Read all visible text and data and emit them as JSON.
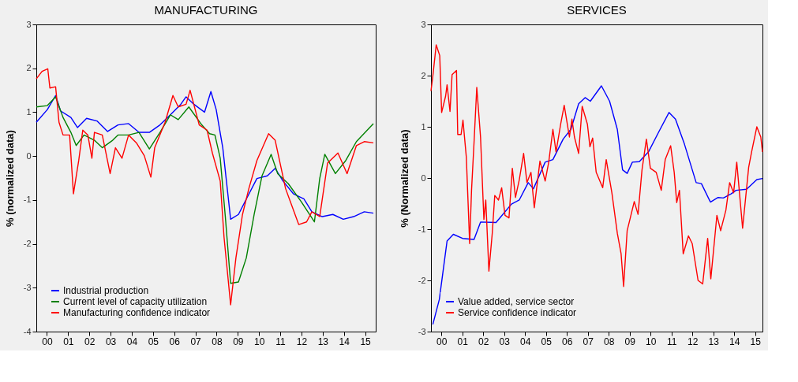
{
  "chart_data": [
    {
      "type": "line",
      "title": "MANUFACTURING",
      "ylabel": "% (normalized data)",
      "xlim": [
        -0.5,
        15.5
      ],
      "ylim": [
        -4,
        3
      ],
      "yticks": [
        -4,
        -3,
        -2,
        -1,
        0,
        1,
        2,
        3
      ],
      "xticks": [
        {
          "value": 0,
          "label": "00"
        },
        {
          "value": 1,
          "label": "01"
        },
        {
          "value": 2,
          "label": "02"
        },
        {
          "value": 3,
          "label": "03"
        },
        {
          "value": 4,
          "label": "04"
        },
        {
          "value": 5,
          "label": "05"
        },
        {
          "value": 6,
          "label": "06"
        },
        {
          "value": 7,
          "label": "07"
        },
        {
          "value": 8,
          "label": "08"
        },
        {
          "value": 9,
          "label": "09"
        },
        {
          "value": 10,
          "label": "10"
        },
        {
          "value": 11,
          "label": "11"
        },
        {
          "value": 12,
          "label": "12"
        },
        {
          "value": 13,
          "label": "13"
        },
        {
          "value": 14,
          "label": "14"
        },
        {
          "value": 15,
          "label": "15"
        }
      ],
      "grid": false,
      "legend": "bottom left",
      "marker": "none",
      "line_style": "solid",
      "series": [
        {
          "name": "Industrial production",
          "color": "#0000ff",
          "x": [
            -0.5,
            0.02,
            0.41,
            0.64,
            1.13,
            1.44,
            1.87,
            2.36,
            2.86,
            3.35,
            3.85,
            4.34,
            4.83,
            5.33,
            5.82,
            6.31,
            6.56,
            6.93,
            7.43,
            7.73,
            7.98,
            8.29,
            8.66,
            9.03,
            9.4,
            9.9,
            10.39,
            10.76,
            11.13,
            11.62,
            12.12,
            12.49,
            12.98,
            13.48,
            13.97,
            14.46,
            14.96,
            15.39
          ],
          "values": [
            0.77,
            1.06,
            1.38,
            1.03,
            0.88,
            0.65,
            0.86,
            0.8,
            0.56,
            0.71,
            0.74,
            0.54,
            0.54,
            0.71,
            0.94,
            1.18,
            1.35,
            1.18,
            1.0,
            1.47,
            1.06,
            0.19,
            -1.44,
            -1.33,
            -0.98,
            -0.51,
            -0.45,
            -0.28,
            -0.57,
            -0.86,
            -0.98,
            -1.27,
            -1.38,
            -1.33,
            -1.44,
            -1.38,
            -1.27,
            -1.3
          ]
        },
        {
          "name": "Current level of capacity utilization",
          "color": "#008000",
          "x": [
            -0.5,
            0.02,
            0.41,
            0.76,
            1.13,
            1.38,
            1.75,
            2.24,
            2.61,
            3.1,
            3.35,
            3.85,
            4.34,
            4.83,
            5.33,
            5.82,
            6.19,
            6.69,
            7.3,
            7.67,
            7.92,
            8.17,
            8.41,
            8.66,
            9.03,
            9.4,
            9.77,
            10.14,
            10.57,
            10.88,
            11.38,
            11.99,
            12.61,
            12.86,
            13.1,
            13.6,
            14.09,
            14.59,
            15.39
          ],
          "values": [
            1.12,
            1.15,
            1.35,
            0.88,
            0.54,
            0.24,
            0.48,
            0.36,
            0.19,
            0.36,
            0.48,
            0.48,
            0.54,
            0.16,
            0.54,
            0.94,
            0.83,
            1.12,
            0.71,
            0.51,
            0.48,
            -0.05,
            -1.38,
            -2.9,
            -2.87,
            -2.32,
            -1.33,
            -0.45,
            0.04,
            -0.4,
            -0.63,
            -1.04,
            -1.5,
            -0.51,
            0.04,
            -0.4,
            -0.1,
            0.33,
            0.74
          ]
        },
        {
          "name": "Manufacturing confidence indicator",
          "color": "#ff0000",
          "x": [
            -0.5,
            -0.23,
            0.04,
            0.14,
            0.41,
            0.57,
            0.76,
            1.07,
            1.25,
            1.5,
            1.69,
            1.93,
            2.12,
            2.24,
            2.61,
            2.98,
            3.23,
            3.54,
            3.85,
            4.22,
            4.59,
            4.9,
            5.08,
            5.57,
            5.94,
            6.19,
            6.56,
            6.75,
            7.18,
            7.55,
            7.8,
            8.17,
            8.35,
            8.66,
            8.91,
            9.22,
            9.52,
            9.9,
            10.45,
            10.76,
            11.25,
            11.87,
            12.24,
            12.49,
            12.86,
            13.23,
            13.72,
            14.15,
            14.59,
            14.96,
            15.39
          ],
          "values": [
            1.76,
            1.93,
            1.99,
            1.55,
            1.58,
            0.77,
            0.48,
            0.48,
            -0.86,
            -0.1,
            0.59,
            0.48,
            -0.05,
            0.54,
            0.48,
            -0.4,
            0.19,
            -0.05,
            0.48,
            0.3,
            0.01,
            -0.48,
            0.19,
            0.77,
            1.38,
            1.12,
            1.18,
            1.5,
            0.71,
            0.59,
            0.07,
            -0.57,
            -1.85,
            -3.39,
            -2.32,
            -1.33,
            -0.74,
            -0.1,
            0.51,
            0.36,
            -0.74,
            -1.56,
            -1.5,
            -1.27,
            -1.38,
            -0.16,
            0.07,
            -0.4,
            0.24,
            0.33,
            0.3
          ]
        }
      ]
    },
    {
      "type": "line",
      "title": "SERVICES",
      "ylabel": "% (Normalized data)",
      "xlim": [
        -0.5,
        15.35
      ],
      "ylim": [
        -3,
        3
      ],
      "yticks": [
        -3,
        -2,
        -1,
        0,
        1,
        2,
        3
      ],
      "xticks": [
        {
          "value": 0,
          "label": "00"
        },
        {
          "value": 1,
          "label": "01"
        },
        {
          "value": 2,
          "label": "02"
        },
        {
          "value": 3,
          "label": "03"
        },
        {
          "value": 4,
          "label": "04"
        },
        {
          "value": 5,
          "label": "05"
        },
        {
          "value": 6,
          "label": "06"
        },
        {
          "value": 7,
          "label": "07"
        },
        {
          "value": 8,
          "label": "08"
        },
        {
          "value": 9,
          "label": "09"
        },
        {
          "value": 10,
          "label": "10"
        },
        {
          "value": 11,
          "label": "11"
        },
        {
          "value": 12,
          "label": "12"
        },
        {
          "value": 13,
          "label": "13"
        },
        {
          "value": 14,
          "label": "14"
        },
        {
          "value": 15,
          "label": "15"
        }
      ],
      "grid": false,
      "legend": "bottom left",
      "marker": "none",
      "line_style": "solid",
      "series": [
        {
          "name": "Value added, service sector",
          "color": "#0000ff",
          "x": [
            -0.41,
            -0.1,
            0.27,
            0.57,
            1.01,
            1.56,
            1.87,
            2.61,
            3.35,
            3.72,
            4.15,
            4.4,
            4.96,
            5.33,
            5.82,
            6.19,
            6.56,
            6.87,
            7.12,
            7.65,
            8.04,
            8.41,
            8.66,
            8.88,
            9.13,
            9.46,
            9.9,
            10.39,
            10.88,
            11.19,
            11.62,
            12.18,
            12.43,
            12.86,
            13.23,
            13.48,
            13.85,
            14.09,
            14.59,
            15.08,
            15.35
          ],
          "values": [
            -2.86,
            -2.37,
            -1.23,
            -1.1,
            -1.18,
            -1.2,
            -0.86,
            -0.87,
            -0.51,
            -0.43,
            -0.09,
            -0.21,
            0.31,
            0.36,
            0.76,
            0.95,
            1.45,
            1.57,
            1.5,
            1.8,
            1.5,
            0.95,
            0.16,
            0.09,
            0.31,
            0.32,
            0.51,
            0.9,
            1.28,
            1.15,
            0.66,
            -0.09,
            -0.11,
            -0.47,
            -0.38,
            -0.39,
            -0.31,
            -0.24,
            -0.22,
            -0.03,
            -0.01
          ]
        },
        {
          "name": "Service confidence indicator",
          "color": "#ff0000",
          "x": [
            -0.5,
            -0.41,
            -0.25,
            -0.08,
            0.01,
            0.2,
            0.27,
            0.41,
            0.51,
            0.72,
            0.78,
            0.94,
            1.03,
            1.19,
            1.35,
            1.44,
            1.56,
            1.69,
            1.87,
            2.03,
            2.12,
            2.27,
            2.43,
            2.55,
            2.73,
            2.88,
            3.04,
            3.23,
            3.39,
            3.54,
            3.72,
            3.93,
            4.09,
            4.28,
            4.44,
            4.71,
            4.96,
            5.13,
            5.33,
            5.48,
            5.7,
            5.87,
            6.12,
            6.24,
            6.36,
            6.56,
            6.73,
            6.98,
            7.1,
            7.23,
            7.4,
            7.71,
            7.88,
            8.15,
            8.41,
            8.59,
            8.71,
            8.88,
            9.03,
            9.22,
            9.4,
            9.59,
            9.8,
            9.99,
            10.27,
            10.51,
            10.7,
            10.96,
            11.13,
            11.25,
            11.38,
            11.56,
            11.81,
            11.99,
            12.27,
            12.49,
            12.73,
            12.88,
            13.17,
            13.35,
            13.6,
            13.78,
            13.97,
            14.12,
            14.4,
            14.69,
            14.83,
            15.08,
            15.27,
            15.35
          ],
          "values": [
            1.7,
            1.99,
            2.6,
            2.39,
            1.28,
            1.6,
            1.82,
            1.3,
            2.02,
            2.1,
            0.85,
            0.85,
            1.13,
            0.41,
            -1.28,
            -0.24,
            0.7,
            1.77,
            0.8,
            -0.81,
            -0.43,
            -1.82,
            -1.08,
            -0.34,
            -0.43,
            -0.19,
            -0.73,
            -0.78,
            0.19,
            -0.38,
            -0.04,
            0.48,
            -0.09,
            0.11,
            -0.58,
            0.33,
            -0.06,
            0.31,
            0.95,
            0.51,
            1.05,
            1.42,
            0.8,
            1.15,
            0.8,
            0.48,
            1.4,
            1.05,
            0.61,
            0.78,
            0.11,
            -0.19,
            0.36,
            -0.29,
            -1.08,
            -1.48,
            -2.12,
            -1.03,
            -0.78,
            -0.46,
            -0.71,
            0.16,
            0.76,
            0.19,
            0.11,
            -0.24,
            0.36,
            0.63,
            0.11,
            -0.48,
            -0.24,
            -1.48,
            -1.13,
            -1.28,
            -2.0,
            -2.07,
            -1.18,
            -1.97,
            -0.73,
            -1.03,
            -0.63,
            -0.09,
            -0.29,
            0.31,
            -0.98,
            0.21,
            0.51,
            1.0,
            0.8,
            0.51
          ]
        }
      ]
    }
  ]
}
